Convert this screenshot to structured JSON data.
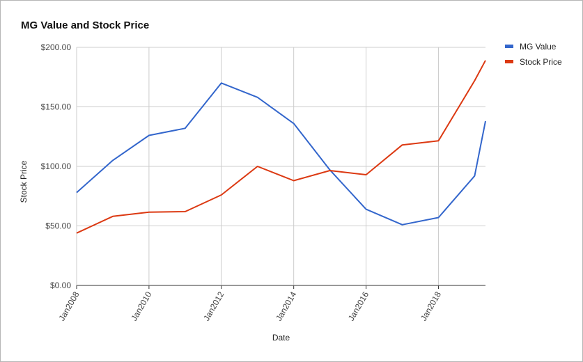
{
  "chart_data": {
    "type": "line",
    "title": "MG Value and Stock Price",
    "xlabel": "Date",
    "ylabel": "Stock Price",
    "ylim": [
      0,
      200
    ],
    "y_ticks": [
      "$0.00",
      "$50.00",
      "$100.00",
      "$150.00",
      "$200.00"
    ],
    "y_tick_values": [
      0,
      50,
      100,
      150,
      200
    ],
    "x_tick_labels": [
      "Jan2008",
      "Jan2010",
      "Jan2012",
      "Jan2014",
      "Jan2016",
      "Jan2018"
    ],
    "x_tick_years": [
      2008,
      2010,
      2012,
      2014,
      2016,
      2018
    ],
    "x": [
      "Jan2008",
      "Jan2009",
      "Jan2010",
      "Jan2011",
      "Jan2012",
      "Jan2013",
      "Jan2014",
      "Jan2015",
      "Jan2016",
      "Jan2017",
      "Jan2018",
      "Jan2019",
      "Jun2019"
    ],
    "x_years": [
      2008,
      2009,
      2010,
      2011,
      2012,
      2013,
      2014,
      2015,
      2016,
      2017,
      2018,
      2019,
      2019.3
    ],
    "xlim": [
      2008,
      2019.3
    ],
    "grid": true,
    "legend_position": "right",
    "series": [
      {
        "name": "MG Value",
        "color": "#3366cc",
        "values": [
          78,
          105,
          126,
          132,
          170,
          158,
          136,
          97,
          64,
          51,
          57,
          92,
          138
        ]
      },
      {
        "name": "Stock Price",
        "color": "#dc3912",
        "values": [
          44,
          58,
          61.5,
          62,
          76,
          100,
          88,
          96.5,
          93,
          118,
          121.5,
          172,
          189
        ]
      }
    ]
  }
}
